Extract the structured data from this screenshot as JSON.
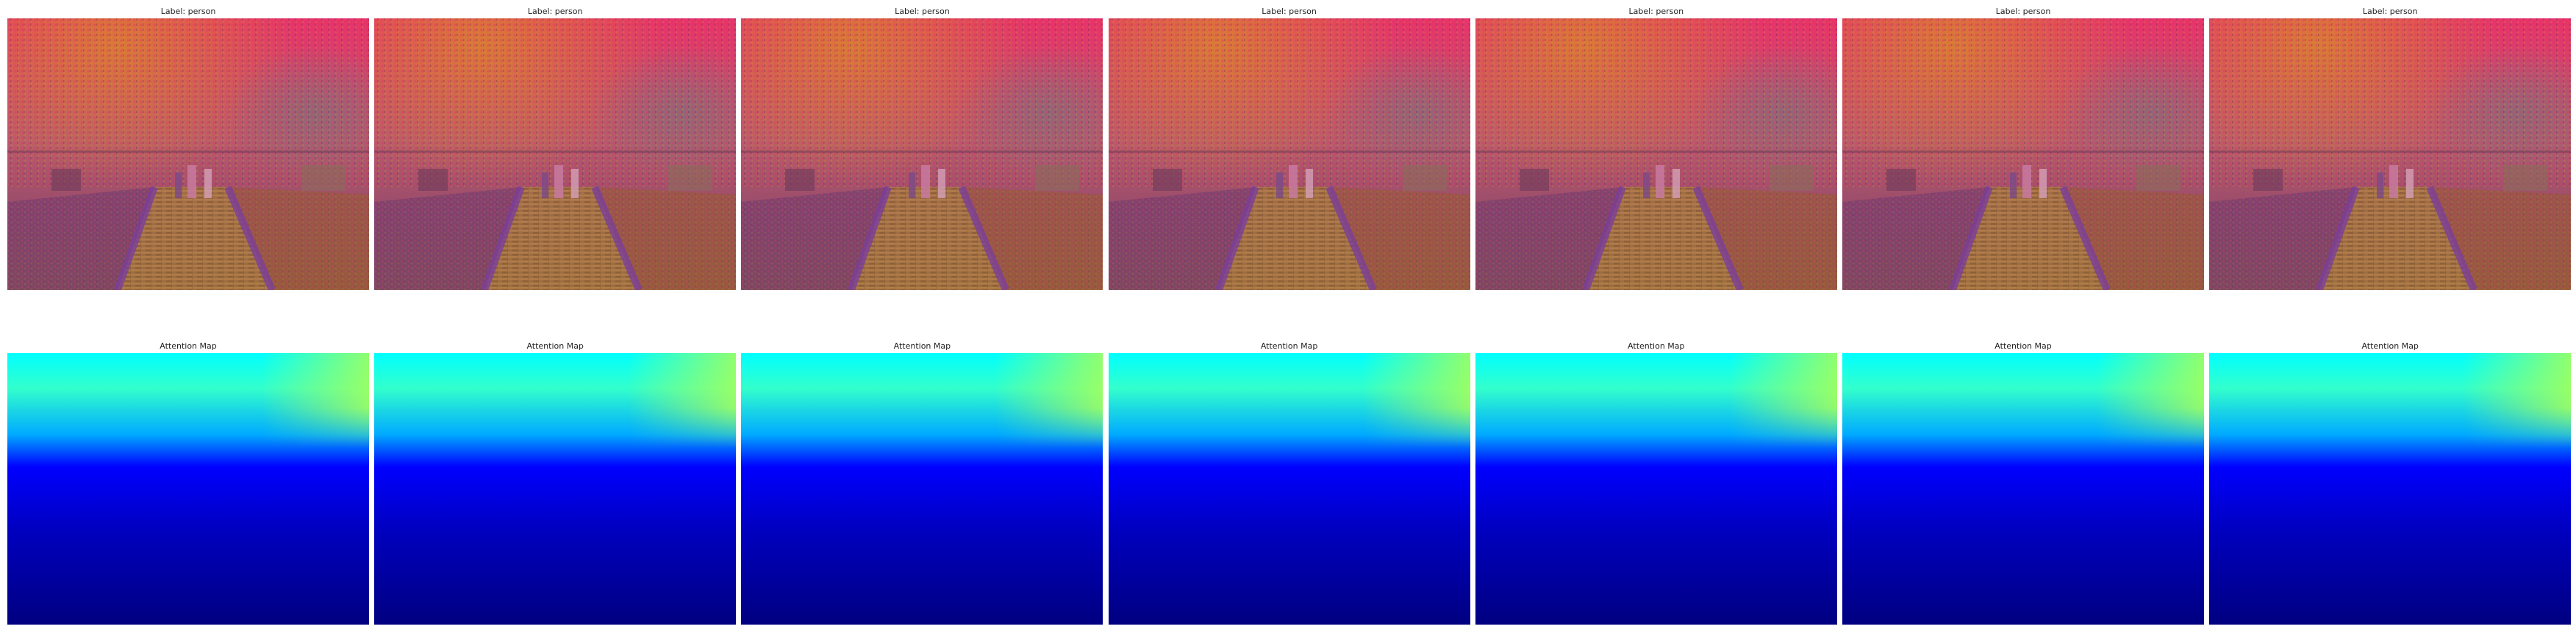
{
  "figure": {
    "rows": [
      {
        "kind": "image",
        "panels": [
          {
            "title": "Label: person"
          },
          {
            "title": "Label: person"
          },
          {
            "title": "Label: person"
          },
          {
            "title": "Label: person"
          },
          {
            "title": "Label: person"
          },
          {
            "title": "Label: person"
          },
          {
            "title": "Label: person"
          }
        ]
      },
      {
        "kind": "attention",
        "panels": [
          {
            "title": "Attention Map"
          },
          {
            "title": "Attention Map"
          },
          {
            "title": "Attention Map"
          },
          {
            "title": "Attention Map"
          },
          {
            "title": "Attention Map"
          },
          {
            "title": "Attention Map"
          },
          {
            "title": "Attention Map"
          }
        ]
      }
    ],
    "colors": {
      "background": "#ffffff",
      "title_text": "#222222",
      "image_base": "#b85a6e",
      "image_pink": "#e8336b",
      "image_orange": "#d88a2a",
      "image_purple": "#7a3f9a",
      "image_ground": "#8a5f3a",
      "jet_dark_red": "#800000",
      "jet_red": "#ff0000",
      "jet_yellow": "#ffff00",
      "jet_cyan": "#00ffff",
      "jet_blue": "#0000ff",
      "jet_dark_blue": "#000080"
    }
  }
}
